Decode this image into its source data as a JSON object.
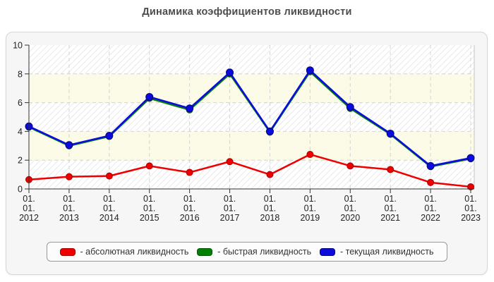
{
  "title": "Динамика коэффициентов ликвидности",
  "chart_data": {
    "type": "line",
    "title": "Динамика коэффициентов ликвидности",
    "categories": [
      "01.01.2012",
      "01.01.2013",
      "01.01.2014",
      "01.01.2015",
      "01.01.2016",
      "01.01.2017",
      "01.01.2018",
      "01.01.2019",
      "01.01.2020",
      "01.01.2021",
      "01.01.2022",
      "01.01.2023"
    ],
    "series": [
      {
        "key": "absolute-liquidity",
        "name": "абсолютная ликвидность",
        "color": "#ee0000",
        "border_color": "#aa0000",
        "values": [
          0.65,
          0.85,
          0.9,
          1.6,
          1.15,
          1.9,
          1.0,
          2.4,
          1.6,
          1.35,
          0.45,
          0.15
        ]
      },
      {
        "key": "quick-liquidity",
        "name": "быстрая ликвидность",
        "color": "#028002",
        "border_color": "#015701",
        "values": [
          4.3,
          3.0,
          3.65,
          6.3,
          5.5,
          8.0,
          3.95,
          8.15,
          5.6,
          3.8,
          1.55,
          2.1
        ]
      },
      {
        "key": "current-liquidity",
        "name": "текущая ликвидность",
        "color": "#0b0bdf",
        "border_color": "#05057f",
        "values": [
          4.35,
          3.05,
          3.7,
          6.4,
          5.6,
          8.1,
          4.0,
          8.25,
          5.7,
          3.85,
          1.6,
          2.15
        ]
      }
    ],
    "ylim": [
      0,
      10
    ],
    "yticks": [
      0,
      2,
      4,
      6,
      8,
      10
    ],
    "grid": true,
    "legend_position": "bottom"
  },
  "legend": {
    "items": [
      {
        "label": "- абсолютная ликвидность",
        "color": "#ee0000",
        "border": "#aa0000"
      },
      {
        "label": "- быстрая ликвидность",
        "color": "#028002",
        "border": "#015701"
      },
      {
        "label": "- текущая ликвидность",
        "color": "#0b0bdf",
        "border": "#05057f"
      }
    ]
  },
  "style_colors": {
    "panel_background": "#f6f6f6",
    "plot_cream_band": "#fafae4",
    "hatch_line": "#e0e0e0",
    "gridline": "#d4d4d4",
    "axis": "#333333",
    "title_text": "#4d4d4d"
  }
}
